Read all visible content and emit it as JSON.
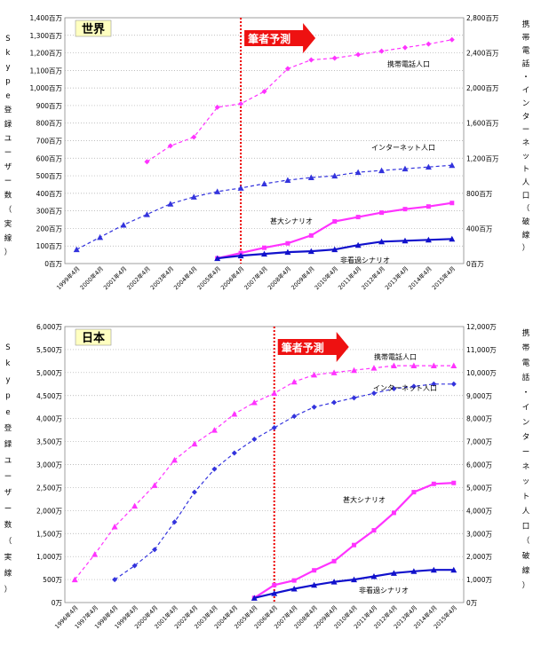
{
  "colors": {
    "mobile": "#ff33ff",
    "internet": "#3333dd",
    "severe": "#ff33ff",
    "mild": "#1111cc",
    "forecast_line": "#ee0000",
    "forecast_arrow": "#ee1111",
    "title_box": "#ffffc0",
    "grid": "#aaaaaa"
  },
  "chart_data": [
    {
      "type": "line",
      "title": "世界",
      "forecast_label": "筆者予測",
      "forecast_start": "2006年4月",
      "ylabel_left": "Skype登録ユーザー数（実線）",
      "ylabel_right": "携帯電話・インターネット人口（破線）",
      "y_left_ticks": [
        "0百万",
        "100百万",
        "200百万",
        "300百万",
        "400百万",
        "500百万",
        "600百万",
        "700百万",
        "800百万",
        "900百万",
        "1,000百万",
        "1,100百万",
        "1,200百万",
        "1,300百万",
        "1,400百万"
      ],
      "y_right_ticks": [
        "0百万",
        "400百万",
        "800百万",
        "1,200百万",
        "1,600百万",
        "2,000百万",
        "2,400百万",
        "2,800百万"
      ],
      "ylim_left": [
        0,
        1400
      ],
      "ylim_right": [
        0,
        2800
      ],
      "categories": [
        "1999年4月",
        "2000年4月",
        "2001年4月",
        "2002年4月",
        "2003年4月",
        "2004年4月",
        "2005年4月",
        "2006年4月",
        "2007年4月",
        "2008年4月",
        "2009年4月",
        "2010年4月",
        "2011年4月",
        "2012年4月",
        "2013年4月",
        "2014年4月",
        "2015年4月"
      ],
      "series": [
        {
          "name": "携帯電話人口",
          "axis": "right",
          "style": "dashed",
          "marker": "diamond",
          "color_key": "mobile",
          "x": [
            3.5,
            4.5,
            5.5,
            6.5,
            7.5,
            8.5,
            9.5,
            10.5,
            11.5,
            12.5,
            13.5,
            14.5,
            15.5,
            16.5
          ],
          "values": [
            1160,
            1340,
            1440,
            1780,
            1820,
            1960,
            2220,
            2320,
            2340,
            2380,
            2420,
            2460,
            2500,
            2550
          ]
        },
        {
          "name": "インターネット人口",
          "axis": "right",
          "style": "dashed",
          "marker": "triangle",
          "color_key": "internet",
          "x": [
            0.5,
            1.5,
            2.5,
            3.5,
            4.5,
            5.5,
            6.5,
            7.5,
            8.5,
            9.5,
            10.5,
            11.5,
            12.5,
            13.5,
            14.5,
            15.5,
            16.5
          ],
          "values": [
            160,
            300,
            440,
            560,
            680,
            760,
            820,
            860,
            910,
            950,
            980,
            1000,
            1040,
            1060,
            1080,
            1100,
            1120
          ]
        },
        {
          "name": "甚大シナリオ",
          "axis": "left",
          "style": "solid",
          "marker": "square",
          "color_key": "severe",
          "x": [
            6.5,
            7.5,
            8.5,
            9.5,
            10.5,
            11.5,
            12.5,
            13.5,
            14.5,
            15.5,
            16.5
          ],
          "values": [
            30,
            60,
            90,
            115,
            160,
            240,
            265,
            290,
            310,
            325,
            345
          ]
        },
        {
          "name": "非看過シナリオ",
          "axis": "left",
          "style": "solid",
          "marker": "triangle",
          "color_key": "mild",
          "x": [
            6.5,
            7.5,
            8.5,
            9.5,
            10.5,
            11.5,
            12.5,
            13.5,
            14.5,
            15.5,
            16.5
          ],
          "values": [
            30,
            45,
            55,
            65,
            70,
            80,
            105,
            125,
            130,
            135,
            140
          ]
        }
      ]
    },
    {
      "type": "line",
      "title": "日本",
      "forecast_label": "筆者予測",
      "forecast_start": "2006年4月",
      "ylabel_left": "Skype登録ユーザー数（実線）",
      "ylabel_right": "携帯電話・インターネット人口（破線）",
      "y_left_ticks": [
        "0万",
        "500万",
        "1,000万",
        "1,500万",
        "2,000万",
        "2,500万",
        "3,000万",
        "3,500万",
        "4,000万",
        "4,500万",
        "5,000万",
        "5,500万",
        "6,000万"
      ],
      "y_right_ticks": [
        "0万",
        "1,000万",
        "2,000万",
        "3,000万",
        "4,000万",
        "5,000万",
        "6,000万",
        "7,000万",
        "8,000万",
        "9,000万",
        "10,000万",
        "11,000万",
        "12,000万"
      ],
      "ylim_left": [
        0,
        6000
      ],
      "ylim_right": [
        0,
        12000
      ],
      "categories": [
        "1996年4月",
        "1997年4月",
        "1998年4月",
        "1999年4月",
        "2000年4月",
        "2001年4月",
        "2002年4月",
        "2003年4月",
        "2004年4月",
        "2005年4月",
        "2006年4月",
        "2007年4月",
        "2008年4月",
        "2009年4月",
        "2010年4月",
        "2011年4月",
        "2012年4月",
        "2013年4月",
        "2014年4月",
        "2015年4月"
      ],
      "series": [
        {
          "name": "携帯電話人口",
          "axis": "right",
          "style": "dashed",
          "marker": "triangle",
          "color_key": "mobile",
          "x": [
            0.5,
            1.5,
            2.5,
            3.5,
            4.5,
            5.5,
            6.5,
            7.5,
            8.5,
            9.5,
            10.5,
            11.5,
            12.5,
            13.5,
            14.5,
            15.5,
            16.5,
            17.5,
            18.5,
            19.5
          ],
          "values": [
            1000,
            2100,
            3300,
            4200,
            5100,
            6200,
            6900,
            7500,
            8200,
            8700,
            9100,
            9600,
            9900,
            10000,
            10100,
            10200,
            10300,
            10300,
            10300,
            10300
          ]
        },
        {
          "name": "インターネット人口",
          "axis": "right",
          "style": "dashed",
          "marker": "diamond",
          "color_key": "internet",
          "x": [
            2.5,
            3.5,
            4.5,
            5.5,
            6.5,
            7.5,
            8.5,
            9.5,
            10.5,
            11.5,
            12.5,
            13.5,
            14.5,
            15.5,
            16.5,
            17.5,
            18.5,
            19.5
          ],
          "values": [
            1000,
            1600,
            2300,
            3500,
            4800,
            5800,
            6500,
            7100,
            7600,
            8100,
            8500,
            8700,
            8900,
            9100,
            9300,
            9400,
            9500,
            9500
          ]
        },
        {
          "name": "甚大シナリオ",
          "axis": "left",
          "style": "solid",
          "marker": "square",
          "color_key": "severe",
          "x": [
            9.5,
            10.5,
            11.5,
            12.5,
            13.5,
            14.5,
            15.5,
            16.5,
            17.5,
            18.5,
            19.5
          ],
          "values": [
            100,
            380,
            480,
            700,
            900,
            1250,
            1570,
            1950,
            2400,
            2580,
            2600
          ]
        },
        {
          "name": "非看過シナリオ",
          "axis": "left",
          "style": "solid",
          "marker": "triangle",
          "color_key": "mild",
          "x": [
            9.5,
            10.5,
            11.5,
            12.5,
            13.5,
            14.5,
            15.5,
            16.5,
            17.5,
            18.5,
            19.5
          ],
          "values": [
            100,
            200,
            300,
            380,
            450,
            500,
            570,
            640,
            680,
            710,
            710
          ]
        }
      ]
    }
  ]
}
